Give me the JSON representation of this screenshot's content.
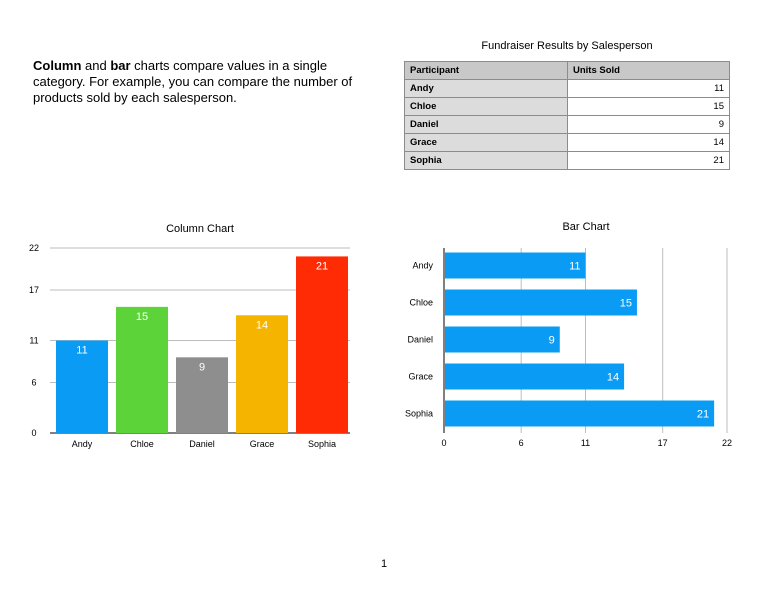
{
  "intro": {
    "bold1": "Column",
    "text1": " and ",
    "bold2": "bar",
    "text2": " charts compare values in a single category. For example, you can compare the number of products sold by each salesperson."
  },
  "table": {
    "title": "Fundraiser Results by Salesperson",
    "headers": [
      "Participant",
      "Units Sold"
    ],
    "rows": [
      {
        "name": "Andy",
        "units": "11"
      },
      {
        "name": "Chloe",
        "units": "15"
      },
      {
        "name": "Daniel",
        "units": "9"
      },
      {
        "name": "Grace",
        "units": "14"
      },
      {
        "name": "Sophia",
        "units": "21"
      }
    ]
  },
  "page_number": "1",
  "chart_data": [
    {
      "type": "bar",
      "orientation": "vertical",
      "title": "Column Chart",
      "categories": [
        "Andy",
        "Chloe",
        "Daniel",
        "Grace",
        "Sophia"
      ],
      "values": [
        11,
        15,
        9,
        14,
        21
      ],
      "colors": [
        "#0a9cf5",
        "#5dd33a",
        "#8e8e8e",
        "#f5b400",
        "#ff2b05"
      ],
      "yticks": [
        0,
        6,
        11,
        17,
        22
      ],
      "ylim": [
        0,
        22
      ],
      "grid": true,
      "data_labels": true
    },
    {
      "type": "bar",
      "orientation": "horizontal",
      "title": "Bar Chart",
      "categories": [
        "Andy",
        "Chloe",
        "Daniel",
        "Grace",
        "Sophia"
      ],
      "values": [
        11,
        15,
        9,
        14,
        21
      ],
      "color": "#0a9cf5",
      "xticks": [
        0,
        6,
        11,
        17,
        22
      ],
      "xlim": [
        0,
        22
      ],
      "grid": true,
      "data_labels": true
    }
  ]
}
